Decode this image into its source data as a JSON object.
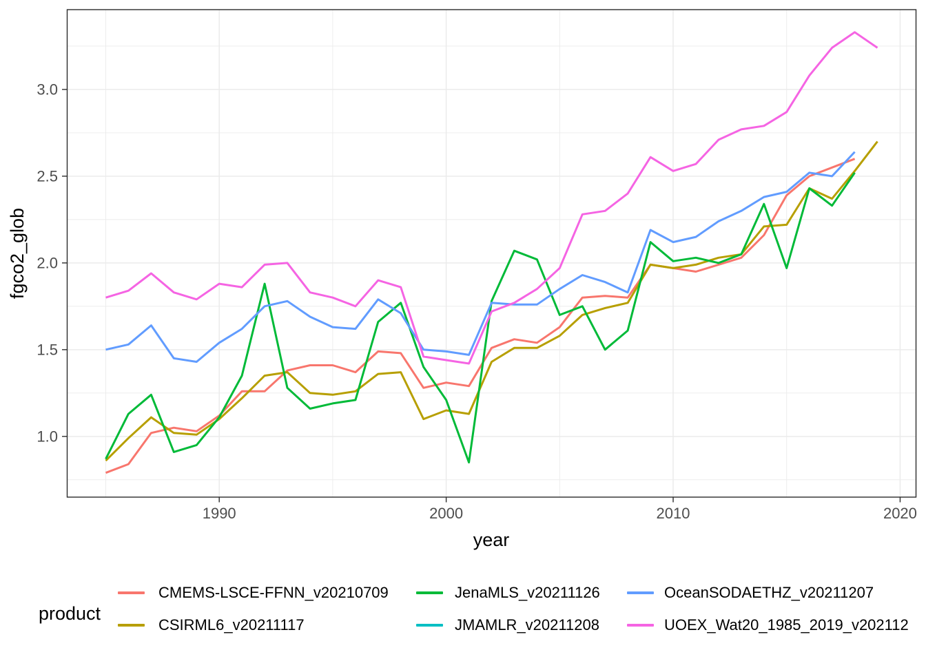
{
  "chart_data": {
    "type": "line",
    "title": "",
    "xlabel": "year",
    "ylabel": "fgco2_glob",
    "legend_title": "product",
    "legend_position": "bottom",
    "grid": "major+minor",
    "x_domain": [
      1983.3,
      2020.7
    ],
    "y_domain": [
      0.65,
      3.46
    ],
    "x_ticks": [
      {
        "value": 1990,
        "label": "1990"
      },
      {
        "value": 2000,
        "label": "2000"
      },
      {
        "value": 2010,
        "label": "2010"
      },
      {
        "value": 2020,
        "label": "2020"
      }
    ],
    "y_ticks": [
      {
        "value": 1.0,
        "label": "1.0"
      },
      {
        "value": 1.5,
        "label": "1.5"
      },
      {
        "value": 2.0,
        "label": "2.0"
      },
      {
        "value": 2.5,
        "label": "2.5"
      },
      {
        "value": 3.0,
        "label": "3.0"
      }
    ],
    "x_minor": [
      1985,
      1995,
      2005,
      2015
    ],
    "y_minor": [
      0.75,
      1.25,
      1.75,
      2.25,
      2.75,
      3.25
    ],
    "colors": {
      "grid": "#EBEBEB",
      "panel_border": "#2b2b2b",
      "tick_text": "#4d4d4d"
    },
    "series": [
      {
        "name": "CMEMS-LSCE-FFNN_v20210709",
        "color": "#F8766D",
        "year_start": 1985,
        "values": [
          0.79,
          0.84,
          1.02,
          1.05,
          1.03,
          1.12,
          1.26,
          1.26,
          1.38,
          1.41,
          1.41,
          1.37,
          1.49,
          1.48,
          1.28,
          1.31,
          1.29,
          1.51,
          1.56,
          1.54,
          1.63,
          1.8,
          1.81,
          1.8,
          1.99,
          1.97,
          1.95,
          1.99,
          2.03,
          2.16,
          2.39,
          2.5,
          2.55,
          2.6
        ]
      },
      {
        "name": "CSIRML6_v20211117",
        "color": "#B79F00",
        "year_start": 1985,
        "values": [
          0.86,
          0.99,
          1.11,
          1.02,
          1.01,
          1.1,
          1.22,
          1.35,
          1.37,
          1.25,
          1.24,
          1.26,
          1.36,
          1.37,
          1.1,
          1.15,
          1.13,
          1.43,
          1.51,
          1.51,
          1.58,
          1.7,
          1.74,
          1.77,
          1.99,
          1.97,
          1.99,
          2.03,
          2.05,
          2.21,
          2.22,
          2.43,
          2.37,
          2.53,
          2.7
        ]
      },
      {
        "name": "JenaMLS_v20211126",
        "color": "#00BA38",
        "year_start": 1985,
        "values": [
          0.87,
          1.13,
          1.24,
          0.91,
          0.95,
          1.11,
          1.35,
          1.88,
          1.28,
          1.16,
          1.19,
          1.21,
          1.66,
          1.77,
          1.4,
          1.21,
          0.85,
          1.78,
          2.07,
          2.02,
          1.7,
          1.75,
          1.5,
          1.61,
          2.12,
          2.01,
          2.03,
          2.0,
          2.05,
          2.34,
          1.97,
          2.43,
          2.33,
          2.52
        ]
      },
      {
        "name": "JMAMLR_v20211208",
        "color": "#00BFC4",
        "year_start": 1985,
        "values": []
      },
      {
        "name": "OceanSODAETHZ_v20211207",
        "color": "#619CFF",
        "year_start": 1985,
        "values": [
          1.5,
          1.53,
          1.64,
          1.45,
          1.43,
          1.54,
          1.62,
          1.75,
          1.78,
          1.69,
          1.63,
          1.62,
          1.79,
          1.71,
          1.5,
          1.49,
          1.47,
          1.77,
          1.76,
          1.76,
          1.85,
          1.93,
          1.89,
          1.83,
          2.19,
          2.12,
          2.15,
          2.24,
          2.3,
          2.38,
          2.41,
          2.52,
          2.5,
          2.64
        ]
      },
      {
        "name": "UOEX_Wat20_1985_2019_v202112",
        "color": "#F564E3",
        "year_start": 1985,
        "values": [
          1.8,
          1.84,
          1.94,
          1.83,
          1.79,
          1.88,
          1.86,
          1.99,
          2.0,
          1.83,
          1.8,
          1.75,
          1.9,
          1.86,
          1.46,
          1.44,
          1.42,
          1.72,
          1.77,
          1.85,
          1.97,
          2.28,
          2.3,
          2.4,
          2.61,
          2.53,
          2.57,
          2.71,
          2.77,
          2.79,
          2.87,
          3.08,
          3.24,
          3.33,
          3.24
        ]
      }
    ]
  }
}
